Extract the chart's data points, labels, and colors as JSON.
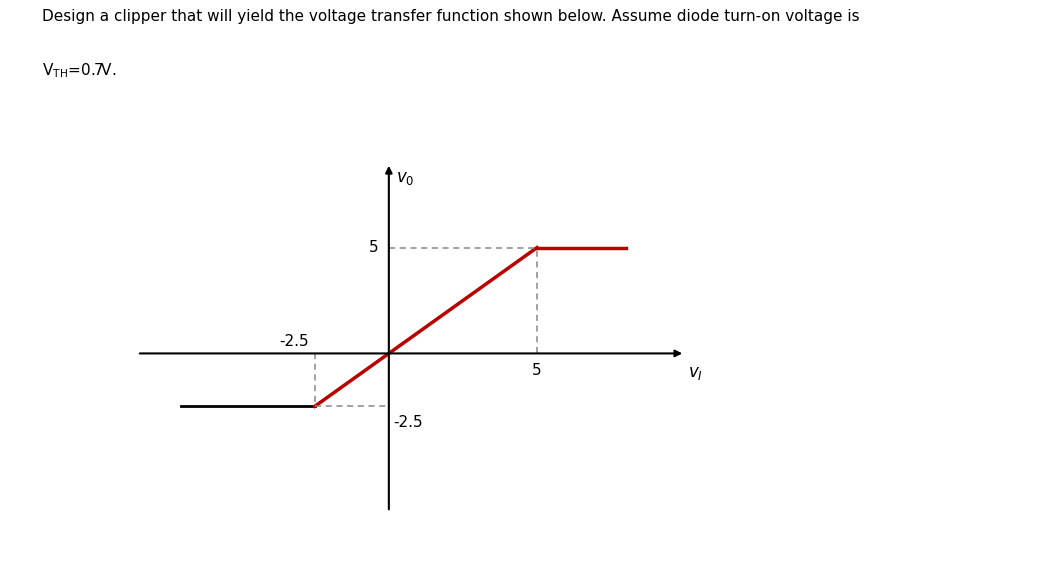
{
  "title_line1": "Design a clipper that will yield the voltage transfer function shown below. Assume diode turn-on voltage is",
  "title_line2": "VₜH=0.7V.",
  "x_break_low": -2.5,
  "y_break_low": -2.5,
  "x_break_high": 5,
  "y_break_high": 5,
  "x_flat_low_start": -7,
  "x_flat_high_end": 8,
  "y_flat_low": -2.5,
  "y_flat_high": 5,
  "x_lim": [
    -8.5,
    10
  ],
  "y_lim": [
    -7.5,
    9
  ],
  "line_color_flat": "#000000",
  "line_color_transfer": "#bb0000",
  "dashed_color": "#888888",
  "axis_color": "#000000",
  "fig_width": 10.54,
  "fig_height": 5.82,
  "dpi": 100
}
